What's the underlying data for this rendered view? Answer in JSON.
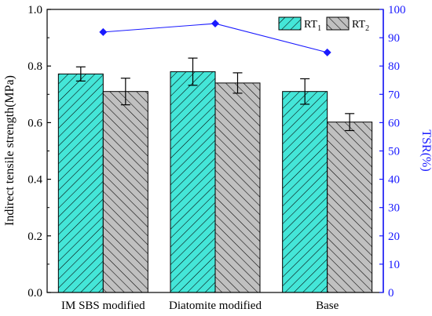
{
  "chart_data": {
    "type": "bar",
    "categories": [
      "IM SBS modified",
      "Diatomite modified",
      "Base"
    ],
    "series": [
      {
        "name": "RT",
        "sub": "1",
        "values": [
          0.772,
          0.78,
          0.71
        ],
        "errors": [
          0.025,
          0.048,
          0.045
        ],
        "color": "#44e6d8"
      },
      {
        "name": "RT",
        "sub": "2",
        "values": [
          0.71,
          0.74,
          0.602
        ],
        "errors": [
          0.047,
          0.036,
          0.03
        ],
        "color": "#c0c0c0"
      }
    ],
    "line_series": {
      "name": "TSR",
      "values": [
        92,
        95,
        84.8
      ],
      "color": "#1a1aff"
    },
    "ylabel": "Indirect tensile strength(MPa)",
    "ylabel_right": "TSR(%)",
    "ylim": [
      0.0,
      1.0
    ],
    "ylim_right": [
      0,
      100
    ],
    "yticks": [
      "0.0",
      "0.2",
      "0.4",
      "0.6",
      "0.8",
      "1.0"
    ],
    "yticks_right": [
      "0",
      "10",
      "20",
      "30",
      "40",
      "50",
      "60",
      "70",
      "80",
      "90",
      "100"
    ],
    "legend_position": "top-right"
  }
}
